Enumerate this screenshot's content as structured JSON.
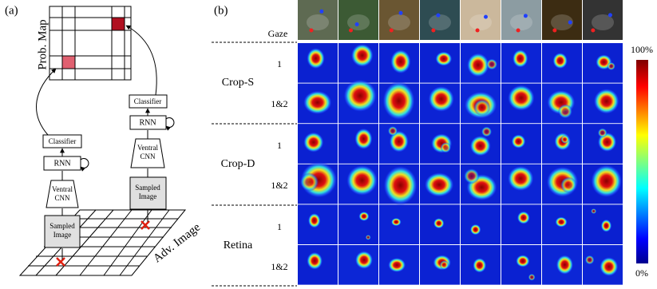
{
  "panel_a": {
    "label": "(a)",
    "prob_map": "Prob. Map",
    "adv_image": "Adv. Image",
    "left_stack": {
      "classifier": "Classifier",
      "rnn": "RNN",
      "cnn": [
        "Ventral",
        "CNN"
      ],
      "sampled": [
        "Sampled",
        "Image"
      ]
    },
    "right_stack": {
      "classifier": "Classifier",
      "rnn": "RNN",
      "cnn": [
        "Ventral",
        "CNN"
      ],
      "sampled": [
        "Sampled",
        "Image"
      ]
    }
  },
  "panel_b": {
    "label": "(b)",
    "gaze": "Gaze",
    "rows": [
      {
        "method": "Crop-S",
        "steps": [
          "1",
          "1&2"
        ]
      },
      {
        "method": "Crop-D",
        "steps": [
          "1",
          "1&2"
        ]
      },
      {
        "method": "Retina",
        "steps": [
          "1",
          "1&2"
        ]
      }
    ],
    "colorbar": {
      "max": "100%",
      "min": "0%"
    }
  }
}
